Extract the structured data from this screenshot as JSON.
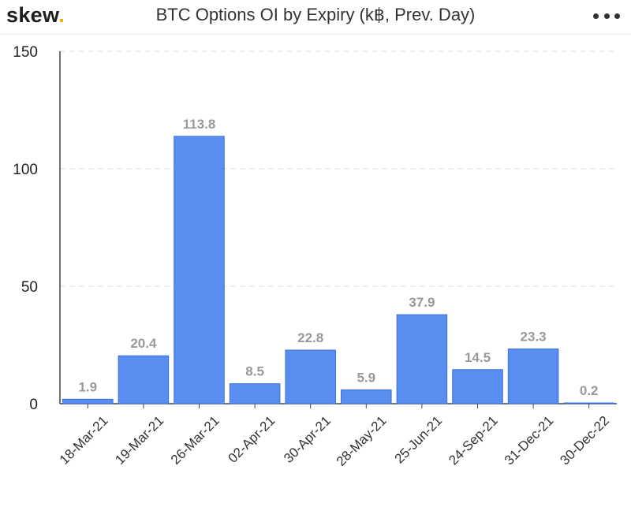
{
  "header": {
    "logo_text": "skew",
    "logo_dot": ".",
    "title": "BTC Options OI by Expiry (k฿, Prev. Day)",
    "menu_icon": "more-dots-icon"
  },
  "colors": {
    "bar": "#5a8df0",
    "bar_stroke": "#3d6fd8",
    "grid": "#dddddd",
    "logo_accent": "#f2a900"
  },
  "chart_data": {
    "type": "bar",
    "title": "BTC Options OI by Expiry (k฿, Prev. Day)",
    "categories": [
      "18-Mar-21",
      "19-Mar-21",
      "26-Mar-21",
      "02-Apr-21",
      "30-Apr-21",
      "28-May-21",
      "25-Jun-21",
      "24-Sep-21",
      "31-Dec-21",
      "30-Dec-22"
    ],
    "values": [
      1.9,
      20.4,
      113.8,
      8.5,
      22.8,
      5.9,
      37.9,
      14.5,
      23.3,
      0.2
    ],
    "data_labels": [
      "1.9",
      "20.4",
      "113.8",
      "8.5",
      "22.8",
      "5.9",
      "37.9",
      "14.5",
      "23.3",
      "0.2"
    ],
    "ylim": [
      0,
      150
    ],
    "yticks": [
      0,
      50,
      100,
      150
    ],
    "ytick_labels": [
      "0",
      "50",
      "100",
      "150"
    ],
    "grid": true,
    "legend": "none"
  }
}
